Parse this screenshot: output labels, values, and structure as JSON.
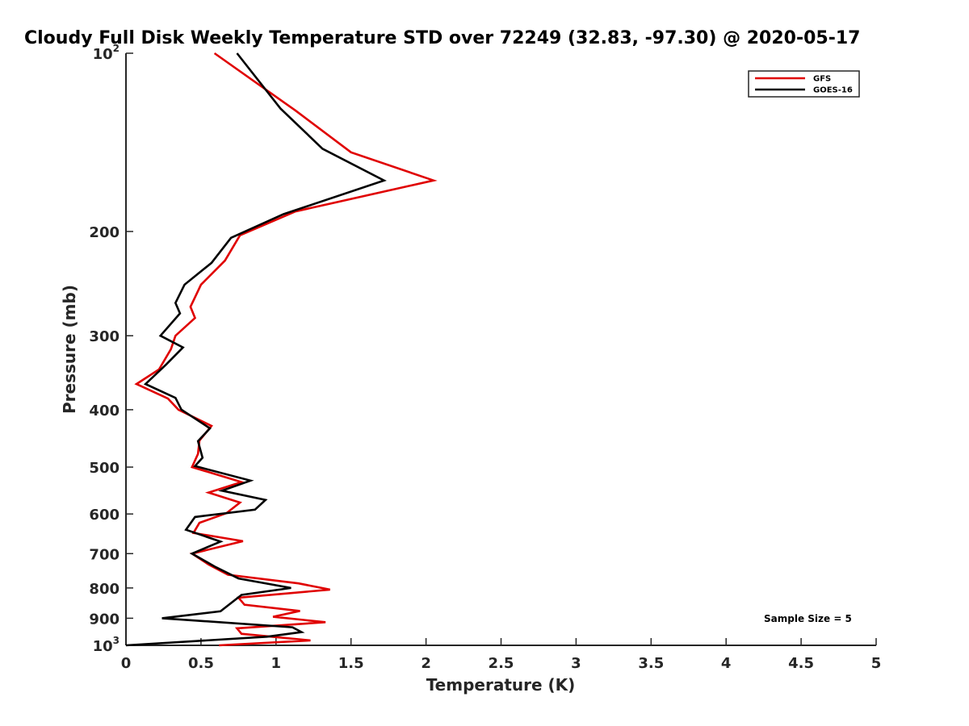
{
  "chart_data": {
    "type": "line",
    "title": "Cloudy Full Disk Weekly Temperature STD over 72249 (32.83, -97.30) @ 2020-05-17",
    "xlabel": "Temperature (K)",
    "ylabel": "Pressure (mb)",
    "xlim": [
      0,
      5
    ],
    "ylim": [
      100,
      1000
    ],
    "yscale": "log",
    "y_reversed": true,
    "grid": false,
    "legend_position": "top-right",
    "x_ticks": [
      0,
      0.5,
      1,
      1.5,
      2,
      2.5,
      3,
      3.5,
      4,
      4.5,
      5
    ],
    "x_tick_labels": [
      "0",
      "0.5",
      "1",
      "1.5",
      "2",
      "2.5",
      "3",
      "3.5",
      "4",
      "4.5",
      "5"
    ],
    "y_ticks": [
      {
        "value": 100,
        "base": "10",
        "exp": "2"
      },
      {
        "value": 200,
        "label": "200"
      },
      {
        "value": 300,
        "label": "300"
      },
      {
        "value": 400,
        "label": "400"
      },
      {
        "value": 500,
        "label": "500"
      },
      {
        "value": 600,
        "label": "600"
      },
      {
        "value": 700,
        "label": "700"
      },
      {
        "value": 800,
        "label": "800"
      },
      {
        "value": 900,
        "label": "900"
      },
      {
        "value": 1000,
        "base": "10",
        "exp": "3"
      }
    ],
    "series": [
      {
        "name": "GFS",
        "color": "#e00000",
        "points": [
          [
            0.59,
            100
          ],
          [
            1.13,
            125
          ],
          [
            1.5,
            147
          ],
          [
            2.05,
            164
          ],
          [
            1.13,
            185
          ],
          [
            0.76,
            203
          ],
          [
            0.66,
            224
          ],
          [
            0.5,
            246
          ],
          [
            0.43,
            268
          ],
          [
            0.46,
            280
          ],
          [
            0.33,
            300
          ],
          [
            0.3,
            316
          ],
          [
            0.22,
            342
          ],
          [
            0.07,
            362
          ],
          [
            0.28,
            383
          ],
          [
            0.35,
            400
          ],
          [
            0.57,
            426
          ],
          [
            0.49,
            451
          ],
          [
            0.48,
            475
          ],
          [
            0.44,
            500
          ],
          [
            0.77,
            530
          ],
          [
            0.55,
            552
          ],
          [
            0.76,
            574
          ],
          [
            0.67,
            598
          ],
          [
            0.49,
            621
          ],
          [
            0.45,
            646
          ],
          [
            0.78,
            667
          ],
          [
            0.44,
            700
          ],
          [
            0.55,
            730
          ],
          [
            0.68,
            760
          ],
          [
            1.15,
            786
          ],
          [
            1.36,
            805
          ],
          [
            0.75,
            831
          ],
          [
            0.79,
            854
          ],
          [
            1.16,
            875
          ],
          [
            0.98,
            895
          ],
          [
            1.33,
            914
          ],
          [
            0.74,
            936
          ],
          [
            0.77,
            956
          ],
          [
            1.23,
            981
          ],
          [
            0.62,
            1000
          ]
        ]
      },
      {
        "name": "GOES-16",
        "color": "#000000",
        "points": [
          [
            0.74,
            100
          ],
          [
            1.03,
            124
          ],
          [
            1.31,
            145
          ],
          [
            1.72,
            164
          ],
          [
            1.05,
            187
          ],
          [
            0.7,
            205
          ],
          [
            0.57,
            226
          ],
          [
            0.39,
            246
          ],
          [
            0.33,
            264
          ],
          [
            0.36,
            275
          ],
          [
            0.23,
            300
          ],
          [
            0.38,
            314
          ],
          [
            0.27,
            335
          ],
          [
            0.13,
            362
          ],
          [
            0.33,
            382
          ],
          [
            0.37,
            400
          ],
          [
            0.56,
            430
          ],
          [
            0.48,
            452
          ],
          [
            0.51,
            482
          ],
          [
            0.46,
            498
          ],
          [
            0.83,
            527
          ],
          [
            0.64,
            548
          ],
          [
            0.93,
            568
          ],
          [
            0.86,
            590
          ],
          [
            0.46,
            607
          ],
          [
            0.4,
            638
          ],
          [
            0.63,
            668
          ],
          [
            0.44,
            700
          ],
          [
            0.6,
            738
          ],
          [
            0.75,
            771
          ],
          [
            1.1,
            800
          ],
          [
            0.77,
            822
          ],
          [
            0.63,
            876
          ],
          [
            0.24,
            900
          ],
          [
            1.11,
            932
          ],
          [
            1.17,
            950
          ],
          [
            0.94,
            967
          ],
          [
            0.0,
            1000
          ]
        ]
      }
    ],
    "annotation": "Sample Size = 5"
  }
}
